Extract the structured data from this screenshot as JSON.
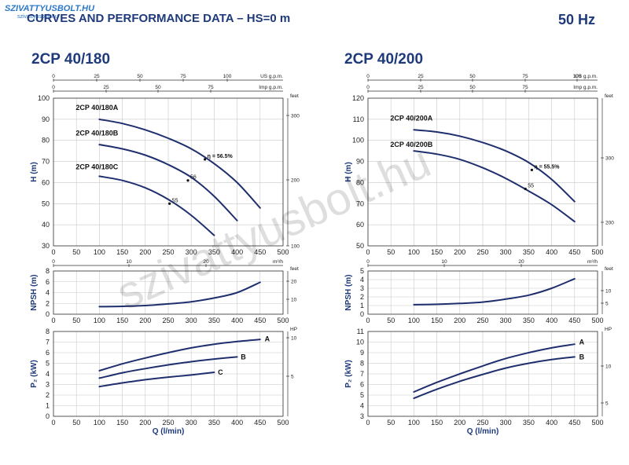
{
  "header": {
    "title": "CURVES AND PERFORMANCE DATA  –  HS=0 m",
    "frequency": "50 Hz",
    "logo_text": "SZIVATTYUSBOLT.HU",
    "logo_sub": "szivattyusbolt.hu",
    "watermark": "szivattyusbolt.hu"
  },
  "colors": {
    "curve": "#1f2f6e",
    "grid": "#c8c8c8",
    "text": "#1f3a7a",
    "logo": "#2a78c8"
  },
  "chart_data": [
    {
      "type": "line",
      "model": "2CP 40/180",
      "panels": {
        "head": {
          "ylabel": "H (m)",
          "ylim": [
            30,
            100
          ],
          "yticks": [
            30,
            40,
            50,
            60,
            70,
            80,
            90,
            100
          ],
          "xlim": [
            0,
            500
          ],
          "right_axis": {
            "unit": "feet",
            "ticks": [
              100,
              200,
              300
            ]
          },
          "top_axes": [
            {
              "unit": "US g.p.m.",
              "ticks": [
                0,
                25,
                50,
                75,
                100
              ]
            },
            {
              "unit": "Imp g.p.m.",
              "ticks": [
                0,
                25,
                50,
                75
              ]
            }
          ],
          "series": [
            {
              "name": "2CP 40/180A",
              "x": [
                100,
                150,
                200,
                250,
                300,
                350,
                400,
                450
              ],
              "y": [
                90,
                88,
                85,
                81,
                76,
                69,
                60,
                48
              ]
            },
            {
              "name": "2CP 40/180B",
              "x": [
                100,
                150,
                200,
                250,
                300,
                350,
                400
              ],
              "y": [
                78,
                76,
                73,
                68.5,
                62.5,
                53.5,
                42
              ]
            },
            {
              "name": "2CP 40/180C",
              "x": [
                100,
                150,
                200,
                250,
                300,
                350
              ],
              "y": [
                63,
                61,
                57.5,
                52,
                44.5,
                35
              ]
            }
          ],
          "efficiency": [
            {
              "label": "η = 56.5%",
              "x": 335,
              "y": 71
            },
            {
              "label": "56",
              "x": 298,
              "y": 61
            },
            {
              "label": "55",
              "x": 258,
              "y": 50
            }
          ]
        },
        "npsh": {
          "ylabel": "NPSH (m)",
          "ylim": [
            0,
            8
          ],
          "yticks": [
            0,
            2,
            4,
            6,
            8
          ],
          "xlim": [
            0,
            500
          ],
          "right_axis": {
            "unit": "feet",
            "ticks": [
              10,
              20
            ]
          },
          "top_axis": {
            "unit": "m³/h",
            "ticks": [
              0,
              10,
              20
            ]
          },
          "series": [
            {
              "name": "",
              "x": [
                100,
                150,
                200,
                250,
                300,
                350,
                400,
                450
              ],
              "y": [
                1.4,
                1.45,
                1.6,
                1.9,
                2.3,
                3.0,
                4.0,
                5.9
              ]
            }
          ]
        },
        "power": {
          "ylabel": "P₂ (kW)",
          "ylim": [
            0,
            8
          ],
          "yticks": [
            0,
            1,
            2,
            3,
            4,
            5,
            6,
            7,
            8
          ],
          "xlim": [
            0,
            500
          ],
          "xlabel": "Q (l/min)",
          "xticks": [
            0,
            50,
            100,
            150,
            200,
            250,
            300,
            350,
            400,
            450,
            500
          ],
          "right_axis": {
            "unit": "HP",
            "ticks": [
              5,
              10
            ]
          },
          "series": [
            {
              "name": "A",
              "x": [
                100,
                150,
                200,
                250,
                300,
                350,
                400,
                450
              ],
              "y": [
                4.3,
                4.95,
                5.5,
                6.0,
                6.45,
                6.8,
                7.05,
                7.25
              ]
            },
            {
              "name": "B",
              "x": [
                100,
                150,
                200,
                250,
                300,
                350,
                400
              ],
              "y": [
                3.6,
                4.1,
                4.5,
                4.85,
                5.15,
                5.4,
                5.6
              ]
            },
            {
              "name": "C",
              "x": [
                100,
                150,
                200,
                250,
                300,
                350
              ],
              "y": [
                2.8,
                3.15,
                3.45,
                3.7,
                3.9,
                4.15
              ]
            }
          ]
        }
      }
    },
    {
      "type": "line",
      "model": "2CP 40/200",
      "panels": {
        "head": {
          "ylabel": "H (m)",
          "ylim": [
            50,
            120
          ],
          "yticks": [
            50,
            60,
            70,
            80,
            90,
            100,
            110,
            120
          ],
          "xlim": [
            0,
            500
          ],
          "right_axis": {
            "unit": "feet",
            "ticks": [
              200,
              300
            ]
          },
          "top_axes": [
            {
              "unit": "US g.p.m.",
              "ticks": [
                0,
                25,
                50,
                75,
                100
              ]
            },
            {
              "unit": "Imp g.p.m.",
              "ticks": [
                0,
                25,
                50,
                75
              ]
            }
          ],
          "series": [
            {
              "name": "2CP 40/200A",
              "x": [
                100,
                150,
                200,
                250,
                300,
                350,
                400,
                450
              ],
              "y": [
                105,
                104,
                102,
                99,
                95,
                89.5,
                81.5,
                71
              ]
            },
            {
              "name": "2CP 40/200B",
              "x": [
                100,
                150,
                200,
                250,
                300,
                350,
                400,
                450
              ],
              "y": [
                95,
                93.5,
                91,
                87,
                82,
                76,
                69.5,
                61.5
              ]
            }
          ],
          "efficiency": [
            {
              "label": "η = 55.5%",
              "x": 362,
              "y": 86
            },
            {
              "label": "55",
              "x": 348,
              "y": 77
            }
          ]
        },
        "npsh": {
          "ylabel": "NPSH (m)",
          "ylim": [
            0,
            5
          ],
          "yticks": [
            0,
            1,
            2,
            3,
            4,
            5
          ],
          "xlim": [
            0,
            500
          ],
          "right_axis": {
            "unit": "feet",
            "ticks": [
              5,
              10
            ]
          },
          "top_axis": {
            "unit": "m³/h",
            "ticks": [
              0,
              10,
              20
            ]
          },
          "series": [
            {
              "name": "",
              "x": [
                100,
                150,
                200,
                250,
                300,
                350,
                400,
                450
              ],
              "y": [
                1.1,
                1.15,
                1.25,
                1.4,
                1.75,
                2.2,
                3.0,
                4.1
              ]
            }
          ]
        },
        "power": {
          "ylabel": "P₂ (kW)",
          "ylim": [
            3,
            11
          ],
          "yticks": [
            3,
            4,
            5,
            6,
            7,
            8,
            9,
            10,
            11
          ],
          "xlim": [
            0,
            500
          ],
          "xlabel": "Q (l/min)",
          "xticks": [
            0,
            50,
            100,
            150,
            200,
            250,
            300,
            350,
            400,
            450,
            500
          ],
          "right_axis": {
            "unit": "HP",
            "ticks": [
              5,
              10
            ]
          },
          "series": [
            {
              "name": "A",
              "x": [
                100,
                150,
                200,
                250,
                300,
                350,
                400,
                450
              ],
              "y": [
                5.3,
                6.2,
                7.0,
                7.75,
                8.45,
                9.0,
                9.45,
                9.8
              ]
            },
            {
              "name": "B",
              "x": [
                100,
                150,
                200,
                250,
                300,
                350,
                400,
                450
              ],
              "y": [
                4.7,
                5.55,
                6.3,
                6.95,
                7.55,
                8.0,
                8.35,
                8.6
              ]
            }
          ]
        }
      }
    }
  ]
}
